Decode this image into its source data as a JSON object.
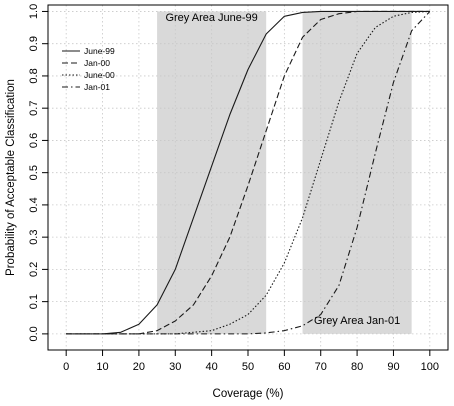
{
  "chart_data": {
    "type": "line",
    "xlabel": "Coverage (%)",
    "ylabel": "Probability of Acceptable Classification",
    "xlim": [
      -5,
      105
    ],
    "ylim": [
      -0.05,
      1.02
    ],
    "xticks": [
      0,
      10,
      20,
      30,
      40,
      50,
      60,
      70,
      80,
      90,
      100
    ],
    "yticks": [
      0.0,
      0.1,
      0.2,
      0.3,
      0.4,
      0.5,
      0.6,
      0.7,
      0.8,
      0.9,
      1.0
    ],
    "xtick_labels": [
      "0",
      "10",
      "20",
      "30",
      "40",
      "50",
      "60",
      "70",
      "80",
      "90",
      "100"
    ],
    "ytick_labels": [
      "0.0",
      "0.1",
      "0.2",
      "0.3",
      "0.4",
      "0.5",
      "0.6",
      "0.7",
      "0.8",
      "0.9",
      "1.0"
    ],
    "grid": true,
    "legend_position": "top-left",
    "bands": [
      {
        "label": "Grey Area June-99",
        "x_range": [
          25,
          55
        ],
        "color": "#d9d9d9"
      },
      {
        "label": "Grey Area Jan-01",
        "x_range": [
          65,
          95
        ],
        "color": "#d9d9d9"
      }
    ],
    "series": [
      {
        "name": "June-99",
        "line_style": "solid",
        "x": [
          0,
          10,
          15,
          20,
          25,
          30,
          35,
          40,
          45,
          50,
          55,
          60,
          65,
          70,
          80,
          90,
          100
        ],
        "values": [
          0.0,
          0.0,
          0.005,
          0.03,
          0.09,
          0.2,
          0.36,
          0.52,
          0.68,
          0.82,
          0.93,
          0.985,
          0.997,
          1.0,
          1.0,
          1.0,
          1.0
        ]
      },
      {
        "name": "Jan-00",
        "line_style": "dashed",
        "x": [
          0,
          10,
          20,
          25,
          30,
          35,
          40,
          45,
          50,
          55,
          60,
          65,
          70,
          75,
          80,
          90,
          100
        ],
        "values": [
          0.0,
          0.0,
          0.0,
          0.01,
          0.04,
          0.09,
          0.18,
          0.3,
          0.46,
          0.63,
          0.8,
          0.92,
          0.975,
          0.993,
          1.0,
          1.0,
          1.0
        ]
      },
      {
        "name": "June-00",
        "line_style": "dotted",
        "x": [
          0,
          20,
          30,
          40,
          45,
          50,
          55,
          60,
          65,
          70,
          75,
          80,
          85,
          90,
          95,
          100
        ],
        "values": [
          0.0,
          0.0,
          0.0,
          0.01,
          0.03,
          0.06,
          0.12,
          0.22,
          0.36,
          0.54,
          0.72,
          0.87,
          0.95,
          0.985,
          0.997,
          1.0
        ]
      },
      {
        "name": "Jan-01",
        "line_style": "dash-dot",
        "x": [
          0,
          40,
          50,
          55,
          60,
          65,
          70,
          75,
          80,
          85,
          90,
          95,
          100
        ],
        "values": [
          0.0,
          0.0,
          0.0,
          0.003,
          0.01,
          0.025,
          0.06,
          0.15,
          0.33,
          0.56,
          0.78,
          0.94,
          1.0
        ]
      }
    ]
  }
}
